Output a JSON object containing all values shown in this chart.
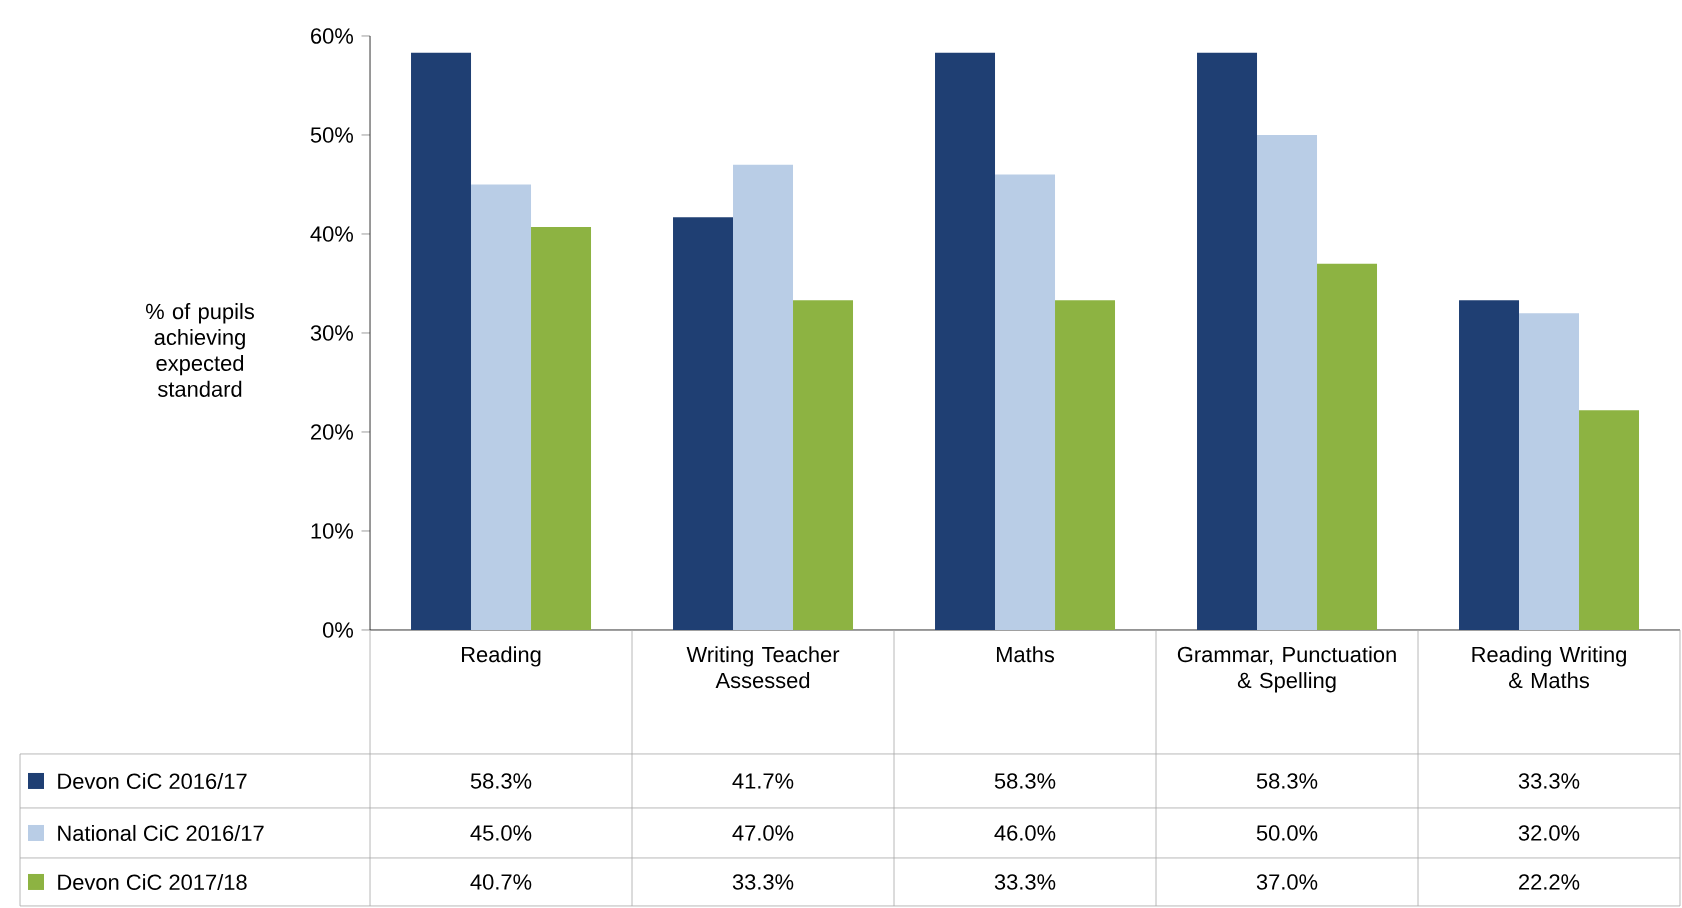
{
  "chart_data": {
    "type": "bar",
    "ylabel": "% of pupils achieving expected standard",
    "categories": [
      "Reading",
      "Writing Teacher Assessed",
      "Maths",
      "Grammar, Punctuation & Spelling",
      "Reading Writing & Maths"
    ],
    "series": [
      {
        "name": "Devon CiC 2016/17",
        "color": "#1f3f73",
        "values": [
          58.3,
          41.7,
          58.3,
          58.3,
          33.3
        ],
        "value_labels": [
          "58.3%",
          "41.7%",
          "58.3%",
          "58.3%",
          "33.3%"
        ]
      },
      {
        "name": "National CiC 2016/17",
        "color": "#b9cde6",
        "values": [
          45.0,
          47.0,
          46.0,
          50.0,
          32.0
        ],
        "value_labels": [
          "45.0%",
          "47.0%",
          "46.0%",
          "50.0%",
          "32.0%"
        ]
      },
      {
        "name": "Devon CiC 2017/18",
        "color": "#8db342",
        "values": [
          40.7,
          33.3,
          33.3,
          37.0,
          22.2
        ],
        "value_labels": [
          "40.7%",
          "33.3%",
          "33.3%",
          "37.0%",
          "22.2%"
        ]
      }
    ],
    "ylim": [
      0,
      60
    ],
    "yticks": [
      {
        "value": 0,
        "label": "0%"
      },
      {
        "value": 10,
        "label": "10%"
      },
      {
        "value": 20,
        "label": "20%"
      },
      {
        "value": 30,
        "label": "30%"
      },
      {
        "value": 40,
        "label": "40%"
      },
      {
        "value": 50,
        "label": "50%"
      },
      {
        "value": 60,
        "label": "60%"
      }
    ],
    "grid": false,
    "legend": "bottom left"
  }
}
